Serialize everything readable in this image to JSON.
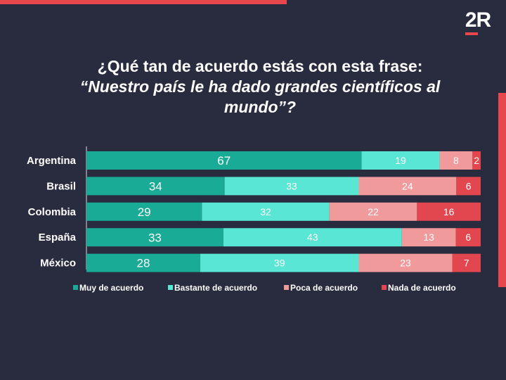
{
  "logo": "2R",
  "title_line1": "¿Qué tan de acuerdo estás con esta frase:",
  "title_line2": "“Nuestro país le ha dado grandes científicos al mundo”?",
  "colors": {
    "background": "#292b3f",
    "accent": "#e8474e",
    "muy": "#1aab96",
    "bastante": "#5ae6d4",
    "poca": "#f09a9b",
    "nada": "#e2474f"
  },
  "chart_data": {
    "type": "bar",
    "orientation": "horizontal-stacked",
    "categories": [
      "Argentina",
      "Brasil",
      "Colombia",
      "España",
      "México"
    ],
    "series": [
      {
        "name": "Muy de acuerdo",
        "values": [
          67,
          34,
          29,
          33,
          28
        ]
      },
      {
        "name": "Bastante de acuerdo",
        "values": [
          19,
          33,
          32,
          43,
          39
        ]
      },
      {
        "name": "Poca de acuerdo",
        "values": [
          8,
          24,
          22,
          13,
          23
        ]
      },
      {
        "name": "Nada de acuerdo",
        "values": [
          2,
          6,
          16,
          6,
          7
        ]
      }
    ],
    "legend": "bottom",
    "grid": false
  }
}
